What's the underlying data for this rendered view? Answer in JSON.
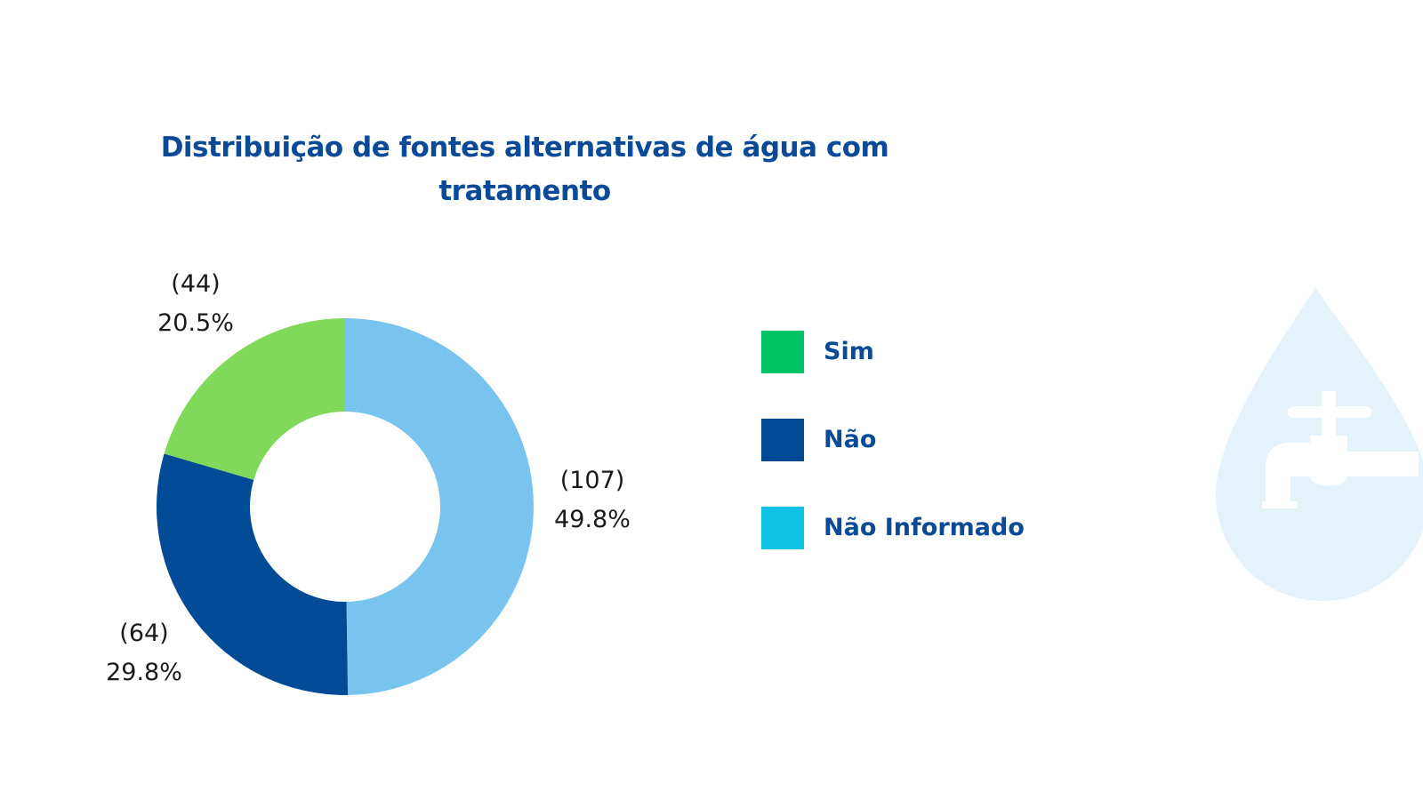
{
  "chart_data": {
    "type": "pie",
    "donut": true,
    "title": "Distribuição de fontes alternativas de água com tratamento",
    "slices": [
      {
        "category": "Não Informado",
        "count": "(107)",
        "value": 107,
        "percent": "49.8%",
        "color": "#78c4ef"
      },
      {
        "category": "Não",
        "count": "(64)",
        "value": 64,
        "percent": "29.8%",
        "color": "#004a96"
      },
      {
        "category": "Sim",
        "count": "(44)",
        "value": 44,
        "percent": "20.5%",
        "color": "#80d95a"
      }
    ],
    "legend": {
      "position": "right",
      "items": [
        {
          "label": "Sim",
          "color": "#00c363"
        },
        {
          "label": "Não",
          "color": "#004a96"
        },
        {
          "label": "Não Informado",
          "color": "#0fc2e3"
        }
      ]
    }
  },
  "decoration": {
    "icon": "water-drop-faucet-icon",
    "drop_color": "#e3f2fb",
    "faucet_color": "#ffffff"
  }
}
